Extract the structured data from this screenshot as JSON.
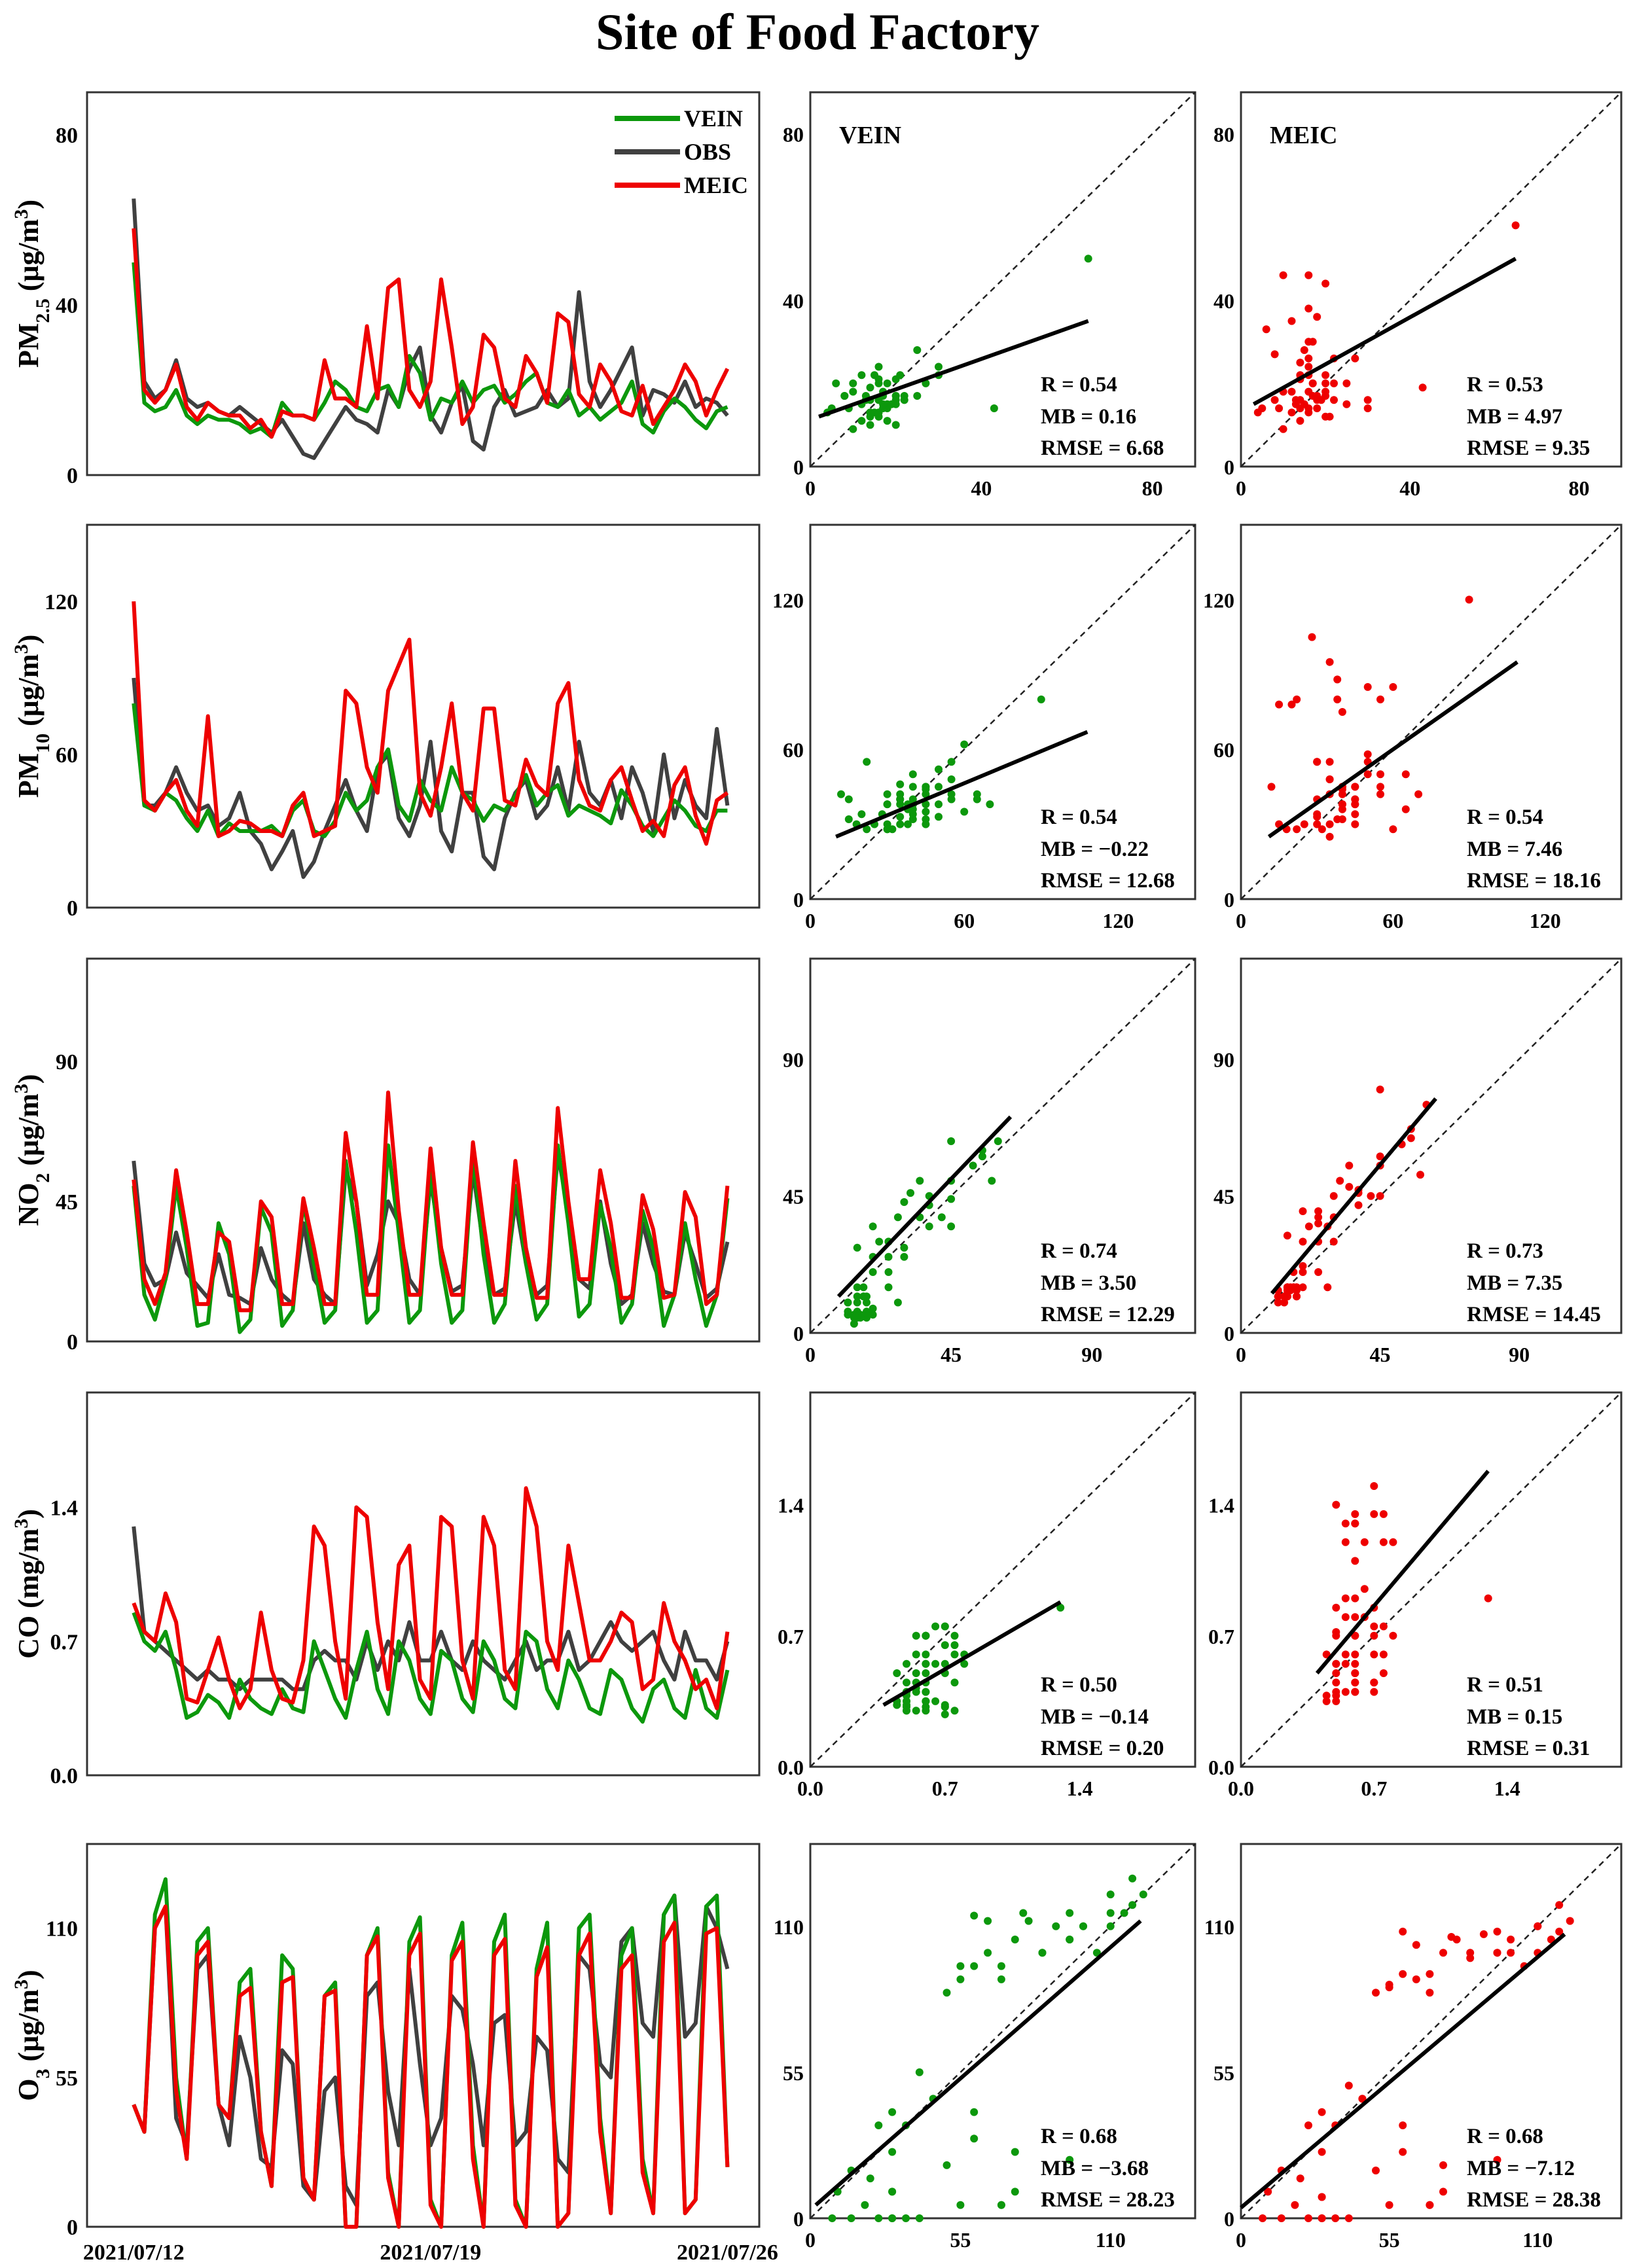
{
  "title": "Site of Food Factory",
  "colors": {
    "VEIN": "#0c980c",
    "OBS": "#404040",
    "MEIC": "#ee0000"
  },
  "legend": [
    "VEIN",
    "OBS",
    "MEIC"
  ],
  "time_axis": {
    "start": "2021/07/12",
    "step_hours": 6,
    "tick_labels": [
      "2021/07/12",
      "2021/07/19",
      "2021/07/26"
    ],
    "tick_days": [
      0,
      7,
      14
    ]
  },
  "chart_data": [
    {
      "type": "line+scatter",
      "pollutant": "PM2.5",
      "ylabel": {
        "main": "PM",
        "sub": "2.5",
        "unit": " (μg/m",
        "sup": "3",
        "close": ")"
      },
      "ylim": [
        0,
        90
      ],
      "ticks": [
        "0",
        "40",
        "80"
      ],
      "tick_values": [
        0,
        40,
        80
      ],
      "series": {
        "OBS": [
          65,
          22,
          18,
          20,
          27,
          18,
          16,
          17,
          15,
          14,
          16,
          14,
          12,
          10,
          13,
          9,
          5,
          4,
          8,
          12,
          16,
          13,
          12,
          10,
          20,
          16,
          25,
          30,
          14,
          10,
          17,
          21,
          8,
          6,
          16,
          20,
          14,
          15,
          16,
          20,
          16,
          18,
          43,
          22,
          16,
          20,
          25,
          30,
          14,
          20,
          19,
          17,
          22,
          16,
          18,
          17,
          14
        ],
        "VEIN": [
          50,
          17,
          15,
          16,
          20,
          14,
          12,
          14,
          13,
          13,
          12,
          10,
          11,
          9,
          17,
          14,
          14,
          13,
          17,
          22,
          20,
          16,
          15,
          20,
          21,
          16,
          28,
          24,
          13,
          18,
          17,
          22,
          17,
          20,
          21,
          17,
          19,
          22,
          24,
          17,
          16,
          20,
          14,
          16,
          13,
          15,
          17,
          22,
          12,
          10,
          15,
          18,
          16,
          13,
          11,
          15,
          16
        ],
        "MEIC": [
          58,
          20,
          17,
          20,
          26,
          16,
          13,
          17,
          15,
          14,
          14,
          11,
          13,
          9,
          15,
          14,
          14,
          13,
          27,
          18,
          18,
          16,
          35,
          18,
          44,
          46,
          20,
          16,
          22,
          46,
          30,
          12,
          16,
          33,
          30,
          18,
          16,
          28,
          24,
          17,
          38,
          36,
          19,
          16,
          26,
          22,
          15,
          14,
          21,
          12,
          16,
          20,
          26,
          22,
          14,
          20,
          25
        ]
      },
      "scatter": {
        "VEIN": {
          "label": "VEIN",
          "fit": [
            [
              2,
              12
            ],
            [
              65,
              35
            ]
          ],
          "stats": [
            "R = 0.54",
            "MB = 0.16",
            "RMSE = 6.68"
          ]
        },
        "MEIC": {
          "label": "MEIC",
          "fit": [
            [
              3,
              15
            ],
            [
              65,
              50
            ]
          ],
          "stats": [
            "R = 0.53",
            "MB = 4.97",
            "RMSE = 9.35"
          ]
        }
      }
    },
    {
      "type": "line+scatter",
      "pollutant": "PM10",
      "ylabel": {
        "main": "PM",
        "sub": "10",
        "unit": " (μg/m",
        "sup": "3",
        "close": ")"
      },
      "ylim": [
        0,
        150
      ],
      "ticks": [
        "0",
        "60",
        "120"
      ],
      "tick_values": [
        0,
        60,
        120
      ],
      "series": {
        "OBS": [
          90,
          40,
          40,
          45,
          55,
          45,
          38,
          40,
          32,
          35,
          45,
          30,
          25,
          15,
          22,
          30,
          12,
          18,
          30,
          40,
          50,
          38,
          30,
          55,
          60,
          35,
          28,
          40,
          65,
          30,
          22,
          45,
          45,
          20,
          15,
          35,
          45,
          50,
          35,
          40,
          55,
          38,
          65,
          45,
          40,
          50,
          35,
          55,
          45,
          30,
          60,
          35,
          50,
          40,
          35,
          70,
          40
        ],
        "VEIN": [
          80,
          40,
          38,
          45,
          42,
          35,
          30,
          38,
          28,
          33,
          30,
          30,
          30,
          32,
          28,
          38,
          42,
          30,
          28,
          34,
          45,
          38,
          42,
          55,
          62,
          40,
          34,
          50,
          42,
          38,
          55,
          45,
          42,
          34,
          40,
          38,
          44,
          52,
          40,
          45,
          48,
          36,
          40,
          38,
          36,
          33,
          46,
          40,
          32,
          28,
          35,
          42,
          38,
          32,
          30,
          38,
          38
        ],
        "MEIC": [
          120,
          42,
          38,
          45,
          50,
          38,
          32,
          75,
          28,
          30,
          34,
          33,
          30,
          30,
          28,
          40,
          45,
          28,
          30,
          32,
          85,
          80,
          55,
          45,
          85,
          95,
          105,
          45,
          36,
          55,
          80,
          45,
          38,
          78,
          78,
          42,
          40,
          58,
          48,
          44,
          80,
          88,
          50,
          40,
          38,
          50,
          55,
          42,
          30,
          34,
          28,
          48,
          55,
          36,
          25,
          42,
          45
        ]
      },
      "scatter": {
        "VEIN": {
          "label": "",
          "fit": [
            [
              10,
              25
            ],
            [
              108,
              67
            ]
          ],
          "stats": [
            "R = 0.54",
            "MB = −0.22",
            "RMSE = 12.68"
          ]
        },
        "MEIC": {
          "label": "",
          "fit": [
            [
              11,
              25
            ],
            [
              109,
              95
            ]
          ],
          "stats": [
            "R = 0.54",
            "MB = 7.46",
            "RMSE = 18.16"
          ]
        }
      }
    },
    {
      "type": "line+scatter",
      "pollutant": "NO2",
      "ylabel": {
        "main": "NO",
        "sub": "2",
        "unit": " (μg/m",
        "sup": "3",
        "close": ")"
      },
      "ylim": [
        0,
        123
      ],
      "ticks": [
        "0",
        "45",
        "90"
      ],
      "tick_values": [
        0,
        45,
        90
      ],
      "series": {
        "OBS": [
          58,
          25,
          18,
          20,
          35,
          22,
          18,
          14,
          28,
          15,
          14,
          12,
          30,
          20,
          15,
          12,
          38,
          20,
          15,
          12,
          55,
          45,
          18,
          28,
          45,
          38,
          20,
          15,
          52,
          30,
          16,
          18,
          55,
          30,
          15,
          17,
          45,
          25,
          15,
          18,
          60,
          42,
          20,
          17,
          45,
          25,
          12,
          15,
          38,
          25,
          16,
          15,
          35,
          25,
          14,
          17,
          32
        ],
        "VEIN": [
          50,
          15,
          7,
          20,
          50,
          30,
          5,
          6,
          38,
          28,
          3,
          7,
          43,
          35,
          5,
          10,
          45,
          25,
          6,
          10,
          58,
          35,
          6,
          10,
          63,
          35,
          6,
          10,
          55,
          25,
          6,
          10,
          60,
          28,
          6,
          12,
          50,
          25,
          7,
          12,
          63,
          38,
          8,
          12,
          44,
          30,
          6,
          12,
          42,
          30,
          5,
          15,
          38,
          20,
          5,
          15,
          46
        ],
        "MEIC": [
          52,
          20,
          12,
          22,
          55,
          35,
          12,
          12,
          35,
          32,
          10,
          10,
          45,
          40,
          12,
          12,
          46,
          30,
          12,
          12,
          67,
          45,
          15,
          15,
          80,
          42,
          15,
          15,
          62,
          30,
          15,
          15,
          64,
          38,
          15,
          15,
          58,
          30,
          14,
          14,
          75,
          45,
          20,
          20,
          55,
          38,
          14,
          14,
          47,
          36,
          14,
          15,
          48,
          40,
          12,
          15,
          50
        ]
      },
      "scatter": {
        "VEIN": {
          "label": "",
          "fit": [
            [
              9,
              12
            ],
            [
              64,
              71
            ]
          ],
          "stats": [
            "R = 0.74",
            "MB = 3.50",
            "RMSE = 12.29"
          ]
        },
        "MEIC": {
          "label": "",
          "fit": [
            [
              10,
              13
            ],
            [
              63,
              77
            ]
          ],
          "stats": [
            "R = 0.73",
            "MB = 7.35",
            "RMSE = 14.45"
          ]
        }
      }
    },
    {
      "type": "line+scatter",
      "pollutant": "CO",
      "ylabel": {
        "main": "CO",
        "sub": "",
        "unit": " (mg/m",
        "sup": "3",
        "close": ")"
      },
      "ylim": [
        0,
        2
      ],
      "ticks": [
        "0.0",
        "0.7",
        "1.4"
      ],
      "tick_values": [
        0,
        0.7,
        1.4
      ],
      "series": {
        "OBS": [
          1.3,
          0.75,
          0.7,
          0.65,
          0.6,
          0.55,
          0.5,
          0.55,
          0.5,
          0.5,
          0.45,
          0.5,
          0.5,
          0.5,
          0.5,
          0.45,
          0.45,
          0.6,
          0.65,
          0.6,
          0.6,
          0.5,
          0.7,
          0.55,
          0.7,
          0.6,
          0.8,
          0.6,
          0.6,
          0.75,
          0.6,
          0.55,
          0.7,
          0.6,
          0.55,
          0.5,
          0.6,
          0.7,
          0.55,
          0.6,
          0.6,
          0.75,
          0.55,
          0.6,
          0.7,
          0.8,
          0.7,
          0.65,
          0.7,
          0.75,
          0.6,
          0.5,
          0.75,
          0.6,
          0.6,
          0.5,
          0.7
        ],
        "VEIN": [
          0.85,
          0.7,
          0.65,
          0.75,
          0.55,
          0.3,
          0.33,
          0.42,
          0.38,
          0.3,
          0.5,
          0.4,
          0.35,
          0.32,
          0.45,
          0.35,
          0.33,
          0.7,
          0.55,
          0.4,
          0.3,
          0.55,
          0.75,
          0.45,
          0.32,
          0.7,
          0.6,
          0.4,
          0.32,
          0.65,
          0.6,
          0.4,
          0.33,
          0.7,
          0.6,
          0.4,
          0.35,
          0.75,
          0.7,
          0.45,
          0.35,
          0.6,
          0.5,
          0.35,
          0.32,
          0.55,
          0.5,
          0.35,
          0.28,
          0.45,
          0.5,
          0.35,
          0.3,
          0.55,
          0.35,
          0.3,
          0.55
        ],
        "MEIC": [
          0.9,
          0.75,
          0.7,
          0.95,
          0.8,
          0.4,
          0.38,
          0.55,
          0.72,
          0.5,
          0.35,
          0.45,
          0.85,
          0.55,
          0.4,
          0.38,
          0.6,
          1.3,
          1.2,
          0.7,
          0.4,
          1.4,
          1.35,
          0.8,
          0.45,
          1.1,
          1.2,
          0.5,
          0.4,
          1.35,
          1.3,
          0.6,
          0.4,
          1.35,
          1.2,
          0.55,
          0.45,
          1.5,
          1.3,
          0.7,
          0.55,
          1.2,
          0.9,
          0.6,
          0.6,
          0.7,
          0.85,
          0.8,
          0.45,
          0.5,
          0.9,
          0.7,
          0.6,
          0.45,
          0.5,
          0.35,
          0.75
        ]
      },
      "scatter": {
        "VEIN": {
          "label": "",
          "fit": [
            [
              0.38,
              0.33
            ],
            [
              1.3,
              0.88
            ]
          ],
          "stats": [
            "R = 0.50",
            "MB = −0.14",
            "RMSE = 0.20"
          ]
        },
        "MEIC": {
          "label": "",
          "fit": [
            [
              0.4,
              0.5
            ],
            [
              1.3,
              1.58
            ]
          ],
          "stats": [
            "R = 0.51",
            "MB = 0.15",
            "RMSE = 0.31"
          ]
        }
      }
    },
    {
      "type": "line+scatter",
      "pollutant": "O3",
      "ylabel": {
        "main": "O",
        "sub": "3",
        "unit": " (μg/m",
        "sup": "3",
        "close": ")"
      },
      "ylim": [
        0,
        141
      ],
      "ticks": [
        "0",
        "55",
        "110"
      ],
      "tick_values": [
        0,
        55,
        110
      ],
      "series": {
        "OBS": [
          45,
          35,
          110,
          118,
          40,
          30,
          95,
          100,
          45,
          30,
          70,
          55,
          25,
          22,
          65,
          60,
          15,
          10,
          50,
          55,
          15,
          8,
          85,
          90,
          50,
          30,
          95,
          60,
          30,
          40,
          85,
          80,
          60,
          30,
          75,
          78,
          30,
          35,
          70,
          65,
          25,
          20,
          100,
          95,
          60,
          55,
          105,
          110,
          75,
          70,
          115,
          122,
          70,
          75,
          118,
          110,
          95
        ],
        "VEIN": [
          45,
          35,
          115,
          128,
          55,
          25,
          105,
          110,
          45,
          40,
          90,
          95,
          35,
          15,
          100,
          95,
          18,
          10,
          85,
          90,
          0,
          0,
          100,
          110,
          20,
          0,
          105,
          114,
          10,
          0,
          100,
          112,
          30,
          0,
          105,
          115,
          10,
          0,
          95,
          112,
          0,
          5,
          110,
          115,
          40,
          5,
          100,
          110,
          25,
          5,
          115,
          122,
          5,
          10,
          118,
          122,
          22
        ],
        "MEIC": [
          45,
          35,
          110,
          118,
          50,
          25,
          100,
          105,
          45,
          40,
          85,
          88,
          35,
          15,
          90,
          92,
          18,
          10,
          85,
          87,
          0,
          0,
          100,
          107,
          18,
          0,
          100,
          108,
          8,
          0,
          98,
          105,
          25,
          0,
          100,
          106,
          8,
          0,
          92,
          103,
          0,
          5,
          100,
          108,
          35,
          5,
          95,
          100,
          20,
          5,
          105,
          112,
          5,
          10,
          108,
          110,
          22
        ]
      },
      "scatter": {
        "VEIN": {
          "label": "",
          "fit": [
            [
              2,
              5
            ],
            [
              121,
              112
            ]
          ],
          "stats": [
            "R = 0.68",
            "MB = −3.68",
            "RMSE = 28.23"
          ]
        },
        "MEIC": {
          "label": "",
          "fit": [
            [
              0,
              4
            ],
            [
              120,
              107
            ]
          ],
          "stats": [
            "R = 0.68",
            "MB = −7.12",
            "RMSE = 28.38"
          ]
        }
      }
    }
  ]
}
